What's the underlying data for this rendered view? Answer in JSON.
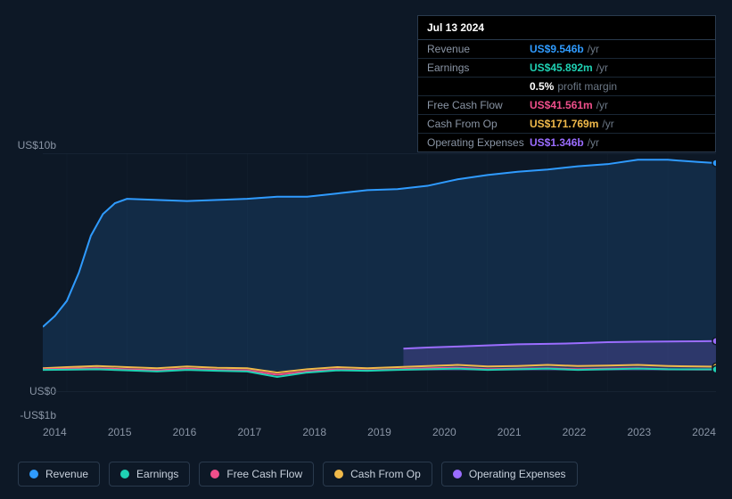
{
  "tooltip": {
    "date": "Jul 13 2024",
    "rows": [
      {
        "label": "Revenue",
        "value": "US$9.546b",
        "unit": "/yr",
        "color": "#2f9bff"
      },
      {
        "label": "Earnings",
        "value": "US$45.892m",
        "unit": "/yr",
        "color": "#1fd1b3"
      },
      {
        "label": "",
        "value": "0.5%",
        "unit": "profit margin",
        "color": "#ffffff"
      },
      {
        "label": "Free Cash Flow",
        "value": "US$41.561m",
        "unit": "/yr",
        "color": "#ef4f8b"
      },
      {
        "label": "Cash From Op",
        "value": "US$171.769m",
        "unit": "/yr",
        "color": "#f0b94a"
      },
      {
        "label": "Operating Expenses",
        "value": "US$1.346b",
        "unit": "/yr",
        "color": "#9b6dff"
      }
    ]
  },
  "chart": {
    "y_labels": [
      {
        "text": "US$10b",
        "y_offset": -4
      },
      {
        "text": "US$0",
        "y_offset": 272
      },
      {
        "text": "-US$1b",
        "y_offset": 299
      }
    ],
    "x_ticks": [
      "2014",
      "2015",
      "2016",
      "2017",
      "2018",
      "2019",
      "2020",
      "2021",
      "2022",
      "2023",
      "2024"
    ],
    "x_range": [
      2013.6,
      2024.8
    ],
    "y_range": [
      -1,
      10
    ],
    "gridline_color": "#1f2d3d",
    "background_gradient_top": "#0d1e33",
    "background_gradient_bottom": "#0d1826",
    "series": [
      {
        "name": "Revenue",
        "color": "#2f9bff",
        "fill": true,
        "fill_opacity": 0.15,
        "points": [
          [
            2013.6,
            2.0
          ],
          [
            2013.8,
            2.5
          ],
          [
            2014.0,
            3.2
          ],
          [
            2014.2,
            4.5
          ],
          [
            2014.4,
            6.2
          ],
          [
            2014.6,
            7.2
          ],
          [
            2014.8,
            7.7
          ],
          [
            2015.0,
            7.9
          ],
          [
            2015.5,
            7.85
          ],
          [
            2016.0,
            7.8
          ],
          [
            2016.5,
            7.85
          ],
          [
            2017.0,
            7.9
          ],
          [
            2017.5,
            8.0
          ],
          [
            2018.0,
            8.0
          ],
          [
            2018.5,
            8.15
          ],
          [
            2019.0,
            8.3
          ],
          [
            2019.5,
            8.35
          ],
          [
            2020.0,
            8.5
          ],
          [
            2020.5,
            8.8
          ],
          [
            2021.0,
            9.0
          ],
          [
            2021.5,
            9.15
          ],
          [
            2022.0,
            9.25
          ],
          [
            2022.5,
            9.4
          ],
          [
            2023.0,
            9.5
          ],
          [
            2023.5,
            9.7
          ],
          [
            2024.0,
            9.7
          ],
          [
            2024.5,
            9.6
          ],
          [
            2024.8,
            9.55
          ]
        ]
      },
      {
        "name": "Operating Expenses",
        "color": "#9b6dff",
        "fill": true,
        "fill_opacity": 0.2,
        "start_x": 2019.6,
        "points": [
          [
            2019.6,
            1.0
          ],
          [
            2020.0,
            1.05
          ],
          [
            2020.5,
            1.1
          ],
          [
            2021.0,
            1.15
          ],
          [
            2021.5,
            1.2
          ],
          [
            2022.0,
            1.22
          ],
          [
            2022.5,
            1.25
          ],
          [
            2023.0,
            1.3
          ],
          [
            2023.5,
            1.32
          ],
          [
            2024.0,
            1.33
          ],
          [
            2024.5,
            1.34
          ],
          [
            2024.8,
            1.35
          ]
        ]
      },
      {
        "name": "Cash From Op",
        "color": "#f0b94a",
        "fill": false,
        "points": [
          [
            2013.6,
            0.1
          ],
          [
            2014.0,
            0.15
          ],
          [
            2014.5,
            0.2
          ],
          [
            2015.0,
            0.15
          ],
          [
            2015.5,
            0.1
          ],
          [
            2016.0,
            0.18
          ],
          [
            2016.5,
            0.12
          ],
          [
            2017.0,
            0.1
          ],
          [
            2017.5,
            -0.1
          ],
          [
            2018.0,
            0.05
          ],
          [
            2018.5,
            0.15
          ],
          [
            2019.0,
            0.1
          ],
          [
            2019.5,
            0.15
          ],
          [
            2020.0,
            0.2
          ],
          [
            2020.5,
            0.25
          ],
          [
            2021.0,
            0.18
          ],
          [
            2021.5,
            0.2
          ],
          [
            2022.0,
            0.25
          ],
          [
            2022.5,
            0.2
          ],
          [
            2023.0,
            0.22
          ],
          [
            2023.5,
            0.25
          ],
          [
            2024.0,
            0.2
          ],
          [
            2024.5,
            0.18
          ],
          [
            2024.8,
            0.17
          ]
        ]
      },
      {
        "name": "Free Cash Flow",
        "color": "#ef4f8b",
        "fill": false,
        "points": [
          [
            2013.6,
            0.05
          ],
          [
            2014.0,
            0.08
          ],
          [
            2014.5,
            0.1
          ],
          [
            2015.0,
            0.05
          ],
          [
            2015.5,
            0.0
          ],
          [
            2016.0,
            0.08
          ],
          [
            2016.5,
            0.02
          ],
          [
            2017.0,
            0.0
          ],
          [
            2017.5,
            -0.2
          ],
          [
            2018.0,
            -0.05
          ],
          [
            2018.5,
            0.05
          ],
          [
            2019.0,
            0.0
          ],
          [
            2019.5,
            0.05
          ],
          [
            2020.0,
            0.1
          ],
          [
            2020.5,
            0.12
          ],
          [
            2021.0,
            0.05
          ],
          [
            2021.5,
            0.08
          ],
          [
            2022.0,
            0.1
          ],
          [
            2022.5,
            0.05
          ],
          [
            2023.0,
            0.08
          ],
          [
            2023.5,
            0.1
          ],
          [
            2024.0,
            0.05
          ],
          [
            2024.5,
            0.04
          ],
          [
            2024.8,
            0.04
          ]
        ]
      },
      {
        "name": "Earnings",
        "color": "#1fd1b3",
        "fill": false,
        "points": [
          [
            2013.6,
            0.02
          ],
          [
            2014.0,
            0.03
          ],
          [
            2014.5,
            0.05
          ],
          [
            2015.0,
            0.0
          ],
          [
            2015.5,
            -0.05
          ],
          [
            2016.0,
            0.02
          ],
          [
            2016.5,
            -0.02
          ],
          [
            2017.0,
            -0.05
          ],
          [
            2017.5,
            -0.3
          ],
          [
            2018.0,
            -0.1
          ],
          [
            2018.5,
            0.0
          ],
          [
            2019.0,
            -0.02
          ],
          [
            2019.5,
            0.02
          ],
          [
            2020.0,
            0.05
          ],
          [
            2020.5,
            0.08
          ],
          [
            2021.0,
            0.02
          ],
          [
            2021.5,
            0.05
          ],
          [
            2022.0,
            0.08
          ],
          [
            2022.5,
            0.02
          ],
          [
            2023.0,
            0.05
          ],
          [
            2023.5,
            0.08
          ],
          [
            2024.0,
            0.05
          ],
          [
            2024.5,
            0.045
          ],
          [
            2024.8,
            0.046
          ]
        ]
      }
    ]
  },
  "legend": [
    {
      "label": "Revenue",
      "color": "#2f9bff"
    },
    {
      "label": "Earnings",
      "color": "#1fd1b3"
    },
    {
      "label": "Free Cash Flow",
      "color": "#ef4f8b"
    },
    {
      "label": "Cash From Op",
      "color": "#f0b94a"
    },
    {
      "label": "Operating Expenses",
      "color": "#9b6dff"
    }
  ]
}
